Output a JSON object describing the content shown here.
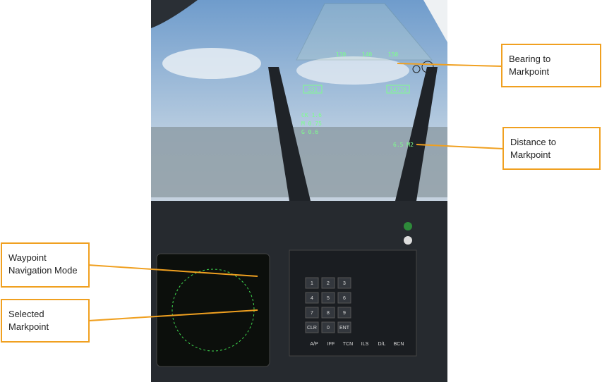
{
  "hud": {
    "heading_ticks": [
      "130",
      "140",
      "150"
    ],
    "speed_box": "331",
    "altitude_box": "14770",
    "distance": "6.5 M2",
    "mach_rows": [
      "CK 1.6",
      "M 0.75",
      "G 0.6"
    ]
  },
  "callouts": [
    {
      "lines": [
        "Bearing to",
        "Markpoint"
      ]
    },
    {
      "lines": [
        "Distance to",
        "Markpoint"
      ]
    },
    {
      "lines": [
        "Waypoint",
        "Navigation Mode"
      ]
    },
    {
      "lines": [
        "Selected",
        "Markpoint"
      ]
    }
  ],
  "keypad": [
    "1",
    "2",
    "3",
    "4",
    "5",
    "6",
    "7",
    "8",
    "9",
    "CLR",
    "0",
    "ENT"
  ],
  "ufc_buttons": [
    "A/P",
    "IFF",
    "TCN",
    "ILS",
    "D/L",
    "BCN"
  ]
}
